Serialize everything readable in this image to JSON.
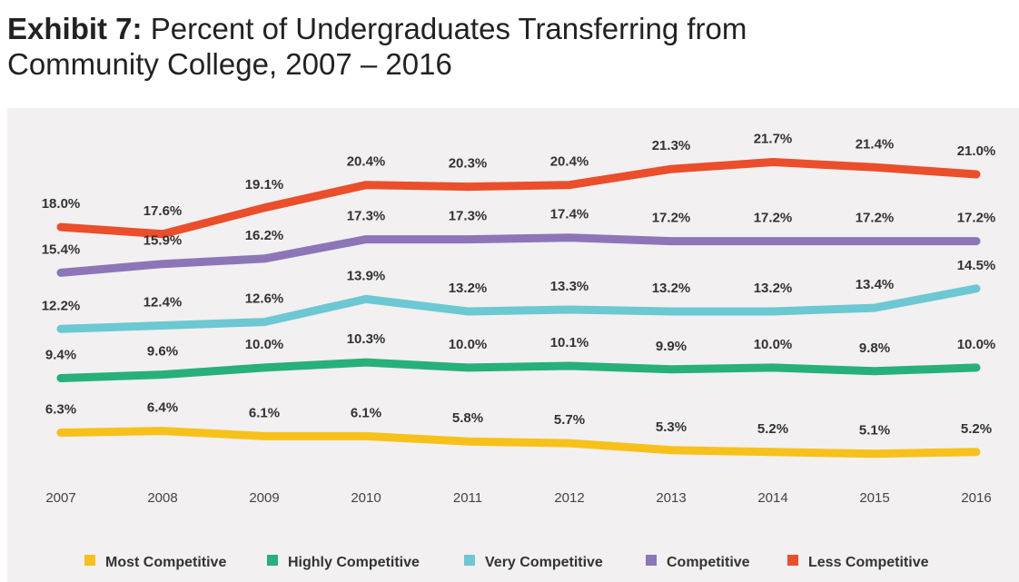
{
  "header": {
    "title_bold": "Exhibit 7:",
    "title_rest": " Percent of Undergraduates Transferring from",
    "title_line2": "Community College, 2007 – 2016"
  },
  "chart_data": {
    "type": "line",
    "title": "Exhibit 7: Percent of Undergraduates Transferring from Community College, 2007 – 2016",
    "categories": [
      "2007",
      "2008",
      "2009",
      "2010",
      "2011",
      "2012",
      "2013",
      "2014",
      "2015",
      "2016"
    ],
    "series": [
      {
        "name": "Most Competitive",
        "color": "#f7c11b",
        "values": [
          6.3,
          6.4,
          6.1,
          6.1,
          5.8,
          5.7,
          5.3,
          5.2,
          5.1,
          5.2
        ],
        "labels": [
          "6.3%",
          "6.4%",
          "6.1%",
          "6.1%",
          "5.8%",
          "5.7%",
          "5.3%",
          "5.2%",
          "5.1%",
          "5.2%"
        ]
      },
      {
        "name": "Highly Competitive",
        "color": "#27b07a",
        "values": [
          9.4,
          9.6,
          10.0,
          10.3,
          10.0,
          10.1,
          9.9,
          10.0,
          9.8,
          10.0
        ],
        "labels": [
          "9.4%",
          "9.6%",
          "10.0%",
          "10.3%",
          "10.0%",
          "10.1%",
          "9.9%",
          "10.0%",
          "9.8%",
          "10.0%"
        ]
      },
      {
        "name": "Very Competitive",
        "color": "#6cc8d2",
        "values": [
          12.2,
          12.4,
          12.6,
          13.9,
          13.2,
          13.3,
          13.2,
          13.2,
          13.4,
          14.5
        ],
        "labels": [
          "12.2%",
          "12.4%",
          "12.6%",
          "13.9%",
          "13.2%",
          "13.3%",
          "13.2%",
          "13.2%",
          "13.4%",
          "14.5%"
        ]
      },
      {
        "name": "Competitive",
        "color": "#8c76b8",
        "values": [
          15.4,
          15.9,
          16.2,
          17.3,
          17.3,
          17.4,
          17.2,
          17.2,
          17.2,
          17.2
        ],
        "labels": [
          "15.4%",
          "15.9%",
          "16.2%",
          "17.3%",
          "17.3%",
          "17.4%",
          "17.2%",
          "17.2%",
          "17.2%",
          "17.2%"
        ]
      },
      {
        "name": "Less Competitive",
        "color": "#ea4e2b",
        "values": [
          18.0,
          17.6,
          19.1,
          20.4,
          20.3,
          20.4,
          21.3,
          21.7,
          21.4,
          21.0
        ],
        "labels": [
          "18.0%",
          "17.6%",
          "19.1%",
          "20.4%",
          "20.3%",
          "20.4%",
          "21.3%",
          "21.7%",
          "21.4%",
          "21.0%"
        ]
      }
    ],
    "background": "#f2f0f0",
    "grid": false,
    "legend_position": "bottom"
  }
}
